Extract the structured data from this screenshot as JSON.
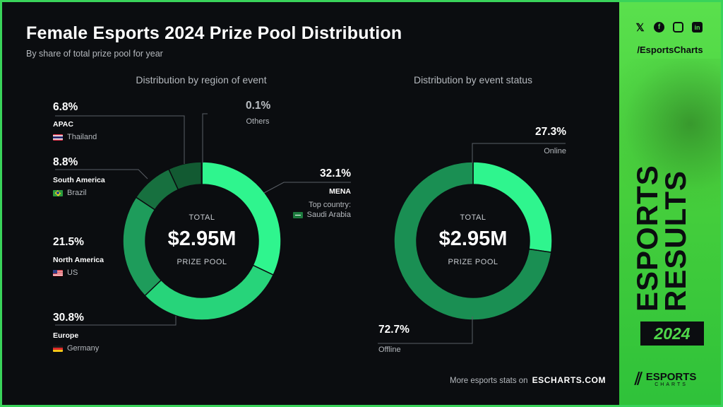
{
  "title": "Female Esports 2024 Prize Pool Distribution",
  "subtitle": "By share of total prize pool for year",
  "center": {
    "total_label": "TOTAL",
    "value": "$2.95M",
    "sub_label": "PRIZE POOL"
  },
  "footer": {
    "text": "More esports stats on",
    "link": "ESCHARTS.COM"
  },
  "side": {
    "handle": "/EsportsCharts",
    "headline_1": "ESPORTS",
    "headline_2": "RESULTS",
    "year": "2024",
    "brand_1": "ESPORTS",
    "brand_2": "CHARTS",
    "icons": [
      "x-icon",
      "facebook-icon",
      "instagram-icon",
      "linkedin-icon"
    ]
  },
  "chart_data": [
    {
      "type": "pie",
      "title": "Distribution by region of event",
      "categories": [
        "MENA",
        "Europe",
        "North America",
        "South America",
        "APAC",
        "Others"
      ],
      "values": [
        32.1,
        30.8,
        21.5,
        8.8,
        6.8,
        0.1
      ],
      "value_labels": [
        "32.1%",
        "30.8%",
        "21.5%",
        "8.8%",
        "6.8%",
        "0.1%"
      ],
      "colors": [
        "#2ff58e",
        "#27d47a",
        "#1e9c5b",
        "#17703f",
        "#125a32",
        "#125a32"
      ],
      "details": {
        "mena_top_label": "Top country:",
        "mena_country": "Saudi Arabia",
        "europe_country": "Germany",
        "north_america_country": "US",
        "south_america_country": "Brazil",
        "apac_country": "Thailand"
      }
    },
    {
      "type": "pie",
      "title": "Distribution by event status",
      "categories": [
        "Online",
        "Offline"
      ],
      "values": [
        27.3,
        72.7
      ],
      "value_labels": [
        "27.3%",
        "72.7%"
      ],
      "colors": [
        "#2ff58e",
        "#1a8f53"
      ]
    }
  ]
}
